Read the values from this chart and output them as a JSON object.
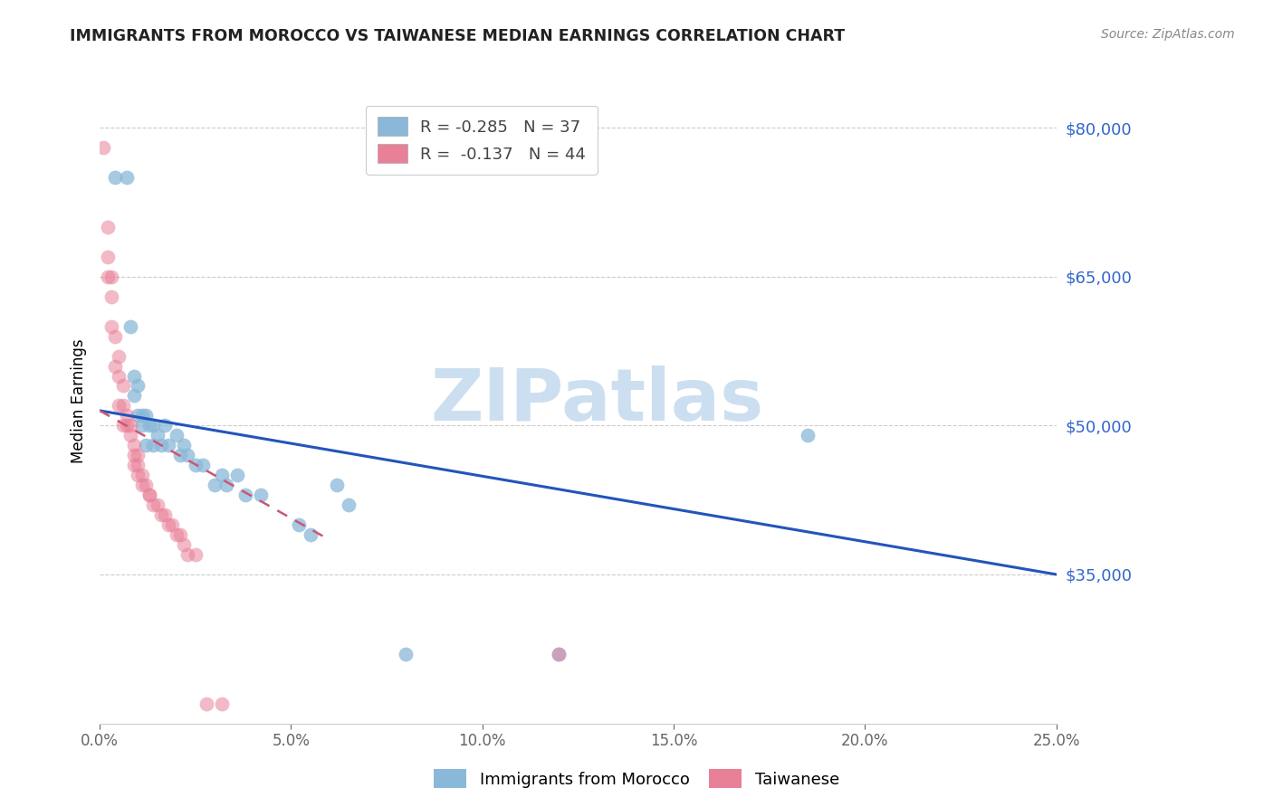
{
  "title": "IMMIGRANTS FROM MOROCCO VS TAIWANESE MEDIAN EARNINGS CORRELATION CHART",
  "source": "Source: ZipAtlas.com",
  "ylabel": "Median Earnings",
  "y_ticks": [
    35000,
    50000,
    65000,
    80000
  ],
  "y_tick_labels": [
    "$35,000",
    "$50,000",
    "$65,000",
    "$80,000"
  ],
  "x_ticks": [
    0.0,
    0.05,
    0.1,
    0.15,
    0.2,
    0.25
  ],
  "x_tick_labels": [
    "0.0%",
    "5.0%",
    "10.0%",
    "15.0%",
    "20.0%",
    "25.0%"
  ],
  "x_range": [
    0.0,
    0.25
  ],
  "y_range": [
    20000,
    85000
  ],
  "morocco_scatter_x": [
    0.004,
    0.007,
    0.008,
    0.009,
    0.009,
    0.01,
    0.01,
    0.011,
    0.011,
    0.012,
    0.012,
    0.013,
    0.014,
    0.014,
    0.015,
    0.016,
    0.017,
    0.018,
    0.02,
    0.021,
    0.022,
    0.023,
    0.025,
    0.027,
    0.03,
    0.032,
    0.033,
    0.036,
    0.038,
    0.042,
    0.052,
    0.055,
    0.062,
    0.065,
    0.08,
    0.12,
    0.185
  ],
  "morocco_scatter_y": [
    75000,
    75000,
    60000,
    55000,
    53000,
    54000,
    51000,
    51000,
    50000,
    51000,
    48000,
    50000,
    50000,
    48000,
    49000,
    48000,
    50000,
    48000,
    49000,
    47000,
    48000,
    47000,
    46000,
    46000,
    44000,
    45000,
    44000,
    45000,
    43000,
    43000,
    40000,
    39000,
    44000,
    42000,
    27000,
    27000,
    49000
  ],
  "taiwanese_scatter_x": [
    0.001,
    0.002,
    0.002,
    0.002,
    0.003,
    0.003,
    0.003,
    0.004,
    0.004,
    0.005,
    0.005,
    0.005,
    0.006,
    0.006,
    0.006,
    0.007,
    0.007,
    0.008,
    0.008,
    0.009,
    0.009,
    0.009,
    0.01,
    0.01,
    0.01,
    0.011,
    0.011,
    0.012,
    0.013,
    0.013,
    0.014,
    0.015,
    0.016,
    0.017,
    0.018,
    0.019,
    0.02,
    0.021,
    0.022,
    0.023,
    0.025,
    0.028,
    0.032,
    0.12
  ],
  "taiwanese_scatter_y": [
    78000,
    70000,
    67000,
    65000,
    65000,
    63000,
    60000,
    59000,
    56000,
    57000,
    55000,
    52000,
    54000,
    52000,
    50000,
    51000,
    50000,
    50000,
    49000,
    48000,
    47000,
    46000,
    47000,
    46000,
    45000,
    45000,
    44000,
    44000,
    43000,
    43000,
    42000,
    42000,
    41000,
    41000,
    40000,
    40000,
    39000,
    39000,
    38000,
    37000,
    37000,
    22000,
    22000,
    27000
  ],
  "morocco_line_x": [
    0.0,
    0.25
  ],
  "morocco_line_y": [
    51500,
    35000
  ],
  "taiwanese_line_x": [
    0.0,
    0.06
  ],
  "taiwanese_line_y": [
    51500,
    38500
  ],
  "blue_scatter_color": "#8ab8d8",
  "pink_scatter_color": "#e88098",
  "blue_line_color": "#2255bb",
  "pink_line_color": "#cc5577",
  "watermark_text": "ZIPatlas",
  "watermark_color": "#ccdff0",
  "background_color": "#ffffff",
  "grid_color": "#cccccc",
  "title_color": "#222222",
  "source_color": "#888888",
  "ytick_color": "#3366cc",
  "legend1_label_r": "R = ",
  "legend1_r_val": "-0.285",
  "legend1_label_n": "  N = ",
  "legend1_n_val": "37",
  "legend2_label_r": "R =  ",
  "legend2_r_val": "-0.137",
  "legend2_label_n": "  N = ",
  "legend2_n_val": "44",
  "bottom_legend1": "Immigrants from Morocco",
  "bottom_legend2": "Taiwanese"
}
